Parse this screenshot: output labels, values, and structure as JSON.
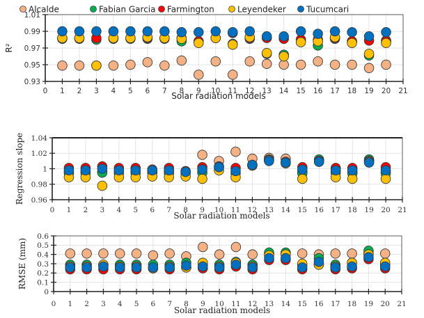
{
  "legend": {
    "entries": [
      {
        "name": "Alcalde",
        "color": "#F4B183"
      },
      {
        "name": "Fabian Garcia",
        "color": "#00B050"
      },
      {
        "name": "Farmington",
        "color": "#FF0000"
      },
      {
        "name": "Leyendeker",
        "color": "#FFC000"
      },
      {
        "name": "Tucumcari",
        "color": "#0070C0"
      }
    ],
    "placement": "top"
  },
  "chart_data": [
    {
      "type": "scatter",
      "title": "",
      "xlabel": "Solar radiation models",
      "ylabel": "R²",
      "xlim": [
        0,
        21
      ],
      "ylim": [
        0.93,
        1.01
      ],
      "x_ticks": [
        "0",
        "1",
        "2",
        "3",
        "4",
        "5",
        "6",
        "7",
        "8",
        "9",
        "10",
        "11",
        "12",
        "13",
        "14",
        "15",
        "16",
        "17",
        "18",
        "19",
        "20",
        "21"
      ],
      "y_ticks": [
        "0.93",
        "0.95",
        "0.97",
        "0.99",
        "1.01"
      ],
      "grid": true,
      "x": [
        1,
        2,
        3,
        4,
        5,
        6,
        7,
        8,
        9,
        10,
        11,
        12,
        13,
        14,
        15,
        16,
        17,
        18,
        19,
        20
      ],
      "series": [
        {
          "name": "Alcalde",
          "values": [
            0.949,
            0.949,
            0.949,
            0.949,
            0.95,
            0.953,
            0.949,
            0.955,
            0.938,
            0.954,
            0.938,
            0.954,
            0.951,
            0.95,
            0.95,
            0.954,
            0.95,
            0.95,
            0.946,
            0.95
          ]
        },
        {
          "name": "Fabian Garcia",
          "values": [
            0.981,
            0.981,
            0.98,
            0.981,
            0.981,
            0.981,
            0.981,
            0.978,
            0.978,
            0.982,
            0.975,
            0.981,
            0.963,
            0.962,
            0.98,
            0.973,
            0.981,
            0.978,
            0.961,
            0.979
          ]
        },
        {
          "name": "Farmington",
          "values": [
            0.982,
            0.982,
            0.982,
            0.982,
            0.982,
            0.982,
            0.982,
            0.982,
            0.978,
            0.982,
            0.988,
            0.982,
            0.982,
            0.981,
            0.98,
            0.98,
            0.982,
            0.978,
            0.979,
            0.978
          ]
        },
        {
          "name": "Leyendeker",
          "values": [
            0.982,
            0.982,
            0.949,
            0.982,
            0.982,
            0.983,
            0.982,
            0.981,
            0.976,
            0.982,
            0.974,
            0.983,
            0.964,
            0.96,
            0.977,
            0.978,
            0.983,
            0.976,
            0.963,
            0.976
          ]
        },
        {
          "name": "Tucumcari",
          "values": [
            0.99,
            0.99,
            0.99,
            0.99,
            0.99,
            0.99,
            0.99,
            0.989,
            0.989,
            0.99,
            0.989,
            0.99,
            0.984,
            0.984,
            0.99,
            0.987,
            0.99,
            0.989,
            0.984,
            0.989
          ]
        }
      ]
    },
    {
      "type": "scatter",
      "title": "",
      "xlabel": "Solar radiation models",
      "ylabel": "Regression slope",
      "xlim": [
        0,
        21
      ],
      "ylim": [
        0.96,
        1.04
      ],
      "x_ticks": [
        "0",
        "1",
        "2",
        "3",
        "4",
        "5",
        "6",
        "7",
        "8",
        "9",
        "10",
        "11",
        "12",
        "13",
        "14",
        "15",
        "16",
        "17",
        "18",
        "19",
        "20",
        "21"
      ],
      "y_ticks": [
        "0.96",
        "0.98",
        "1",
        "1.02",
        "1.04"
      ],
      "grid": true,
      "x": [
        1,
        2,
        3,
        4,
        5,
        6,
        7,
        8,
        9,
        10,
        11,
        12,
        13,
        14,
        15,
        16,
        17,
        18,
        19,
        20
      ],
      "series": [
        {
          "name": "Alcalde",
          "values": [
            0.996,
            0.996,
            0.996,
            0.996,
            0.996,
            0.997,
            0.996,
            0.995,
            1.018,
            1.01,
            1.022,
            1.013,
            1.014,
            1.013,
            0.996,
            1.01,
            0.996,
            0.996,
            1.01,
            0.996
          ]
        },
        {
          "name": "Fabian Garcia",
          "values": [
            0.994,
            0.994,
            0.995,
            0.994,
            0.994,
            0.995,
            0.994,
            0.994,
            0.995,
            1.002,
            0.994,
            1.005,
            1.012,
            1.008,
            0.994,
            1.012,
            0.995,
            0.994,
            1.012,
            0.994
          ]
        },
        {
          "name": "Farmington",
          "values": [
            1.001,
            1.001,
            1.003,
            1.001,
            1.001,
            0.999,
            1.001,
            0.997,
            1.002,
            1.003,
            1.001,
            1.005,
            1.011,
            1.009,
            1.002,
            1.01,
            1.001,
            1.001,
            1.01,
            1.002
          ]
        },
        {
          "name": "Leyendeker",
          "values": [
            0.989,
            0.989,
            0.978,
            0.989,
            0.989,
            0.99,
            0.989,
            0.99,
            0.987,
            0.998,
            0.989,
            1.004,
            1.011,
            1.007,
            0.987,
            1.009,
            0.989,
            0.987,
            1.009,
            0.987
          ]
        },
        {
          "name": "Tucumcari",
          "values": [
            0.998,
            0.998,
            1.0,
            0.998,
            0.998,
            0.998,
            0.998,
            0.996,
            0.999,
            1.002,
            0.997,
            1.005,
            1.01,
            1.008,
            0.999,
            1.009,
            0.998,
            0.998,
            1.008,
            0.998
          ]
        }
      ]
    },
    {
      "type": "scatter",
      "title": "",
      "xlabel": "Solar radiation models",
      "ylabel": "RMSE (mm)",
      "xlim": [
        0,
        21
      ],
      "ylim": [
        0,
        0.6
      ],
      "x_ticks": [
        "0",
        "1",
        "2",
        "3",
        "4",
        "5",
        "6",
        "7",
        "8",
        "9",
        "10",
        "11",
        "12",
        "13",
        "14",
        "15",
        "16",
        "17",
        "18",
        "19",
        "20",
        "21"
      ],
      "y_ticks": [
        "0",
        "0.1",
        "0.2",
        "0.3",
        "0.4",
        "0.5",
        "0.6"
      ],
      "grid": true,
      "x": [
        1,
        2,
        3,
        4,
        5,
        6,
        7,
        8,
        9,
        10,
        11,
        12,
        13,
        14,
        15,
        16,
        17,
        18,
        19,
        20
      ],
      "series": [
        {
          "name": "Alcalde",
          "values": [
            0.41,
            0.41,
            0.41,
            0.41,
            0.41,
            0.39,
            0.41,
            0.38,
            0.48,
            0.4,
            0.48,
            0.4,
            0.41,
            0.41,
            0.41,
            0.4,
            0.41,
            0.41,
            0.41,
            0.41
          ]
        },
        {
          "name": "Fabian Garcia",
          "values": [
            0.29,
            0.29,
            0.29,
            0.29,
            0.29,
            0.29,
            0.29,
            0.31,
            0.29,
            0.29,
            0.32,
            0.29,
            0.42,
            0.42,
            0.28,
            0.36,
            0.29,
            0.31,
            0.44,
            0.29
          ]
        },
        {
          "name": "Farmington",
          "values": [
            0.24,
            0.24,
            0.24,
            0.24,
            0.24,
            0.25,
            0.24,
            0.26,
            0.25,
            0.24,
            0.27,
            0.24,
            0.34,
            0.34,
            0.24,
            0.29,
            0.24,
            0.25,
            0.35,
            0.25
          ]
        },
        {
          "name": "Leyendeker",
          "values": [
            0.27,
            0.27,
            0.29,
            0.27,
            0.27,
            0.25,
            0.27,
            0.26,
            0.31,
            0.27,
            0.31,
            0.27,
            0.39,
            0.4,
            0.3,
            0.29,
            0.27,
            0.31,
            0.4,
            0.31
          ]
        },
        {
          "name": "Tucumcari",
          "values": [
            0.26,
            0.26,
            0.27,
            0.26,
            0.26,
            0.26,
            0.26,
            0.28,
            0.27,
            0.26,
            0.29,
            0.26,
            0.36,
            0.36,
            0.26,
            0.32,
            0.26,
            0.27,
            0.37,
            0.27
          ]
        }
      ]
    }
  ]
}
